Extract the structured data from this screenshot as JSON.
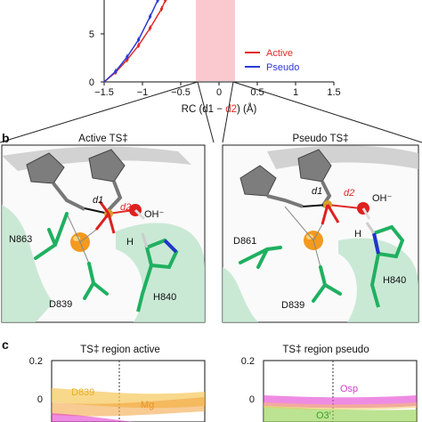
{
  "panel_a": {
    "y_tick_label": "5",
    "y_zero_label": "0",
    "x_tick_labels": [
      "−1.5",
      "−1",
      "−0.5",
      "0",
      "0.5",
      "1",
      "1.5"
    ],
    "xlabel_prefix": "RC (d1 − ",
    "xlabel_red": "d2",
    "xlabel_suffix": ") (Å)",
    "legend": [
      {
        "label": "Active",
        "color": "#e02a2a"
      },
      {
        "label": "Pseudo",
        "color": "#2a3ad6"
      }
    ],
    "shaded_region_color": "#f9c9cf"
  },
  "panel_b": {
    "letter": "b",
    "left": {
      "title": "Active TS‡",
      "labels": {
        "d1": "d1",
        "d2": "d2",
        "oh": "OH⁻",
        "n863": "N863",
        "h": "H",
        "d839": "D839",
        "h840": "H840"
      }
    },
    "right": {
      "title": "Pseudo TS‡",
      "labels": {
        "d1": "d1",
        "d2": "d2",
        "oh": "OH⁻",
        "d861": "D861",
        "h": "H",
        "d839": "D839",
        "h840": "H840"
      }
    }
  },
  "panel_c": {
    "letter": "c",
    "left": {
      "title": "TS‡ region active",
      "y_ticks": [
        "0.2",
        "0"
      ],
      "labels": {
        "d839": "D839",
        "mg": "Mg"
      }
    },
    "right": {
      "title": "TS‡ region pseudo",
      "y_ticks": [
        "0.2",
        "0"
      ],
      "labels": {
        "osp": "Osp",
        "o3": "O3′"
      }
    }
  },
  "chart_data": {
    "type": "line",
    "xlabel": "RC (d1 − d2) (Å)",
    "xlim": [
      -1.5,
      1.5
    ],
    "x_ticks": [
      -1.5,
      -1,
      -0.5,
      0,
      0.5,
      1,
      1.5
    ],
    "y_ticks_visible": [
      0,
      5
    ],
    "shaded_x_range": [
      -0.2,
      0.25
    ],
    "legend_position": "lower-right",
    "series": [
      {
        "name": "Active",
        "color": "#e02a2a",
        "x": [
          -1.5,
          -1.35,
          -1.2,
          -1.05,
          -0.9,
          -0.75,
          -0.7
        ],
        "y": [
          0,
          1.0,
          2.3,
          3.8,
          5.6,
          7.6,
          8.5
        ]
      },
      {
        "name": "Pseudo",
        "color": "#2a3ad6",
        "x": [
          -1.5,
          -1.35,
          -1.2,
          -1.05,
          -0.9,
          -0.8
        ],
        "y": [
          0,
          1.1,
          2.6,
          4.4,
          6.8,
          8.5
        ]
      }
    ]
  },
  "colors": {
    "active": "#e02a2a",
    "pseudo": "#2a3ad6",
    "carbon": "#1fb060",
    "oxygen": "#e01f1f",
    "nitrogen": "#2233cc",
    "mg": "#f39a1f",
    "phosphorus": "#d4a02a"
  }
}
